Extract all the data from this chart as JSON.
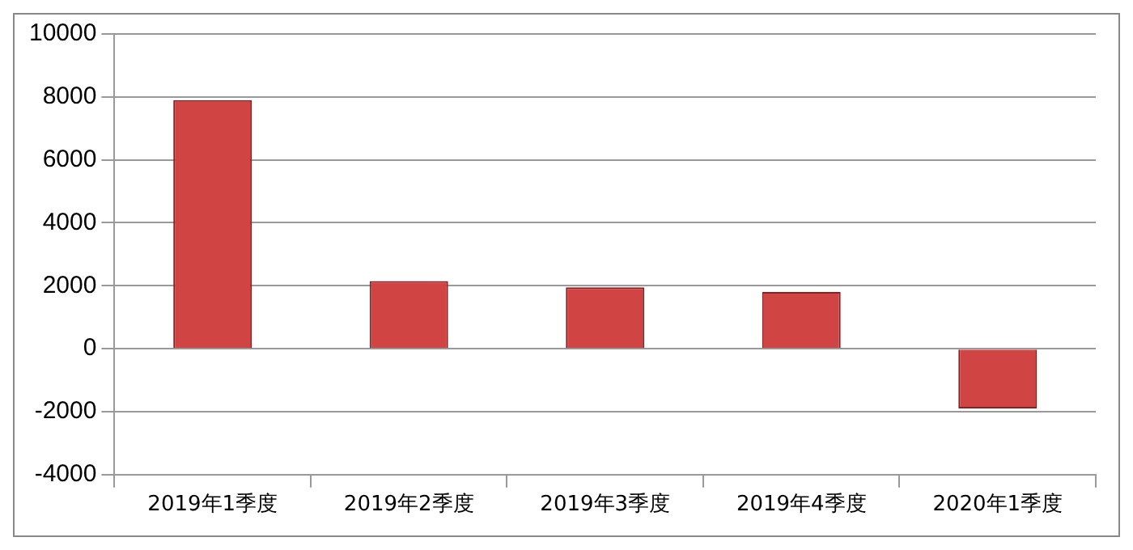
{
  "chart_data": {
    "type": "bar",
    "categories": [
      "2019年1季度",
      "2019年2季度",
      "2019年3季度",
      "2019年4季度",
      "2020年1季度"
    ],
    "values": [
      7900,
      2150,
      1950,
      1800,
      -1900
    ],
    "color": "#d04444",
    "ylim": [
      -4000,
      10000
    ],
    "yticks": [
      -4000,
      -2000,
      0,
      2000,
      4000,
      6000,
      8000,
      10000
    ],
    "grid": "y",
    "legend": false
  }
}
